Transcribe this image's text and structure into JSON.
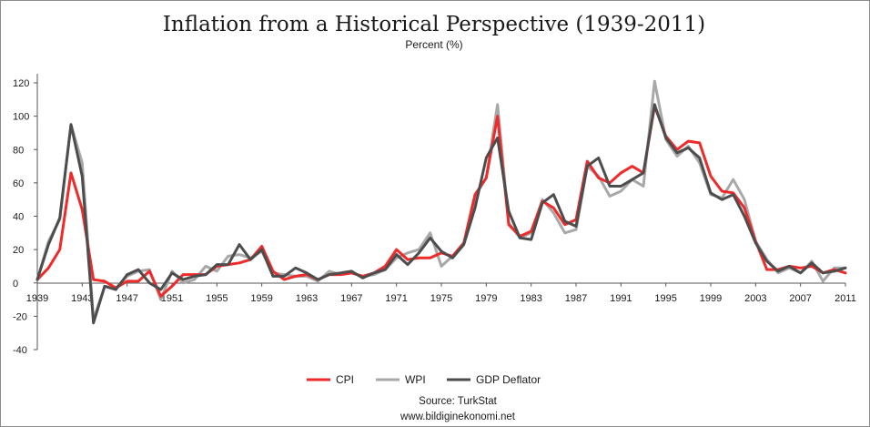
{
  "chart_data": {
    "type": "line",
    "title": "Inflation from a Historical Perspective (1939-2011)",
    "subtitle": "Percent (%)",
    "xlabel": "",
    "ylabel": "",
    "xlim": [
      1939,
      2011
    ],
    "ylim": [
      -40,
      120
    ],
    "y_ticks": [
      120,
      100,
      80,
      60,
      40,
      20,
      0,
      -20,
      -40
    ],
    "x_tick_labels": [
      "1939",
      "1943",
      "1947",
      "1951",
      "1955",
      "1959",
      "1963",
      "1967",
      "1971",
      "1975",
      "1979",
      "1983",
      "1987",
      "1991",
      "1995",
      "1999",
      "2003",
      "2007",
      "2011"
    ],
    "grid": false,
    "legend_position": "bottom",
    "x": [
      1939,
      1940,
      1941,
      1942,
      1943,
      1944,
      1945,
      1946,
      1947,
      1948,
      1949,
      1950,
      1951,
      1952,
      1953,
      1954,
      1955,
      1956,
      1957,
      1958,
      1959,
      1960,
      1961,
      1962,
      1963,
      1964,
      1965,
      1966,
      1967,
      1968,
      1969,
      1970,
      1971,
      1972,
      1973,
      1974,
      1975,
      1976,
      1977,
      1978,
      1979,
      1980,
      1981,
      1982,
      1983,
      1984,
      1985,
      1986,
      1987,
      1988,
      1989,
      1990,
      1991,
      1992,
      1993,
      1994,
      1995,
      1996,
      1997,
      1998,
      1999,
      2000,
      2001,
      2002,
      2003,
      2004,
      2005,
      2006,
      2007,
      2008,
      2009,
      2010,
      2011
    ],
    "series": [
      {
        "name": "CPI",
        "color": "#ee2a2a",
        "values": [
          2,
          9,
          20,
          66,
          44,
          2,
          1,
          -3,
          1,
          1,
          7,
          -8,
          -2,
          5,
          5,
          5,
          10,
          11,
          12,
          14,
          22,
          7,
          2,
          4,
          5,
          2,
          5,
          5,
          6,
          4,
          6,
          10,
          20,
          14,
          15,
          15,
          18,
          16,
          24,
          53,
          63,
          100,
          35,
          28,
          31,
          49,
          45,
          35,
          38,
          73,
          63,
          60,
          66,
          70,
          66,
          106,
          88,
          80,
          85,
          84,
          64,
          55,
          54,
          45,
          25,
          8,
          8,
          10,
          9,
          10,
          6,
          8,
          6
        ]
      },
      {
        "name": "WPI",
        "color": "#a8a8a8",
        "values": [
          2,
          25,
          38,
          95,
          72,
          -22,
          -2,
          -3,
          4,
          7,
          8,
          -10,
          7,
          0,
          2,
          10,
          7,
          16,
          17,
          15,
          19,
          6,
          5,
          4,
          4,
          1,
          7,
          5,
          6,
          4,
          5,
          8,
          15,
          18,
          20,
          30,
          10,
          16,
          24,
          52,
          63,
          107,
          36,
          27,
          30,
          50,
          42,
          30,
          32,
          70,
          64,
          52,
          55,
          62,
          58,
          121,
          86,
          76,
          82,
          72,
          53,
          51,
          62,
          50,
          25,
          14,
          6,
          9,
          6,
          13,
          1,
          9,
          9
        ]
      },
      {
        "name": "GDP Deflator",
        "color": "#4d4d4d",
        "values": [
          2,
          23,
          39,
          95,
          64,
          -24,
          -2,
          -4,
          5,
          8,
          0,
          -4,
          6,
          2,
          4,
          5,
          11,
          11,
          23,
          14,
          20,
          4,
          4,
          9,
          6,
          2,
          5,
          6,
          7,
          3,
          6,
          8,
          17,
          11,
          18,
          27,
          19,
          15,
          23,
          45,
          75,
          87,
          43,
          27,
          26,
          48,
          53,
          37,
          34,
          70,
          75,
          58,
          58,
          62,
          66,
          107,
          87,
          78,
          81,
          75,
          54,
          50,
          53,
          40,
          24,
          13,
          7,
          10,
          6,
          12,
          6,
          7,
          9
        ]
      }
    ]
  },
  "legend": {
    "items": [
      "CPI",
      "WPI",
      "GDP Deflator"
    ]
  },
  "footer": {
    "source": "Source: TurkStat",
    "website": "www.bildiginekonomi.net"
  }
}
